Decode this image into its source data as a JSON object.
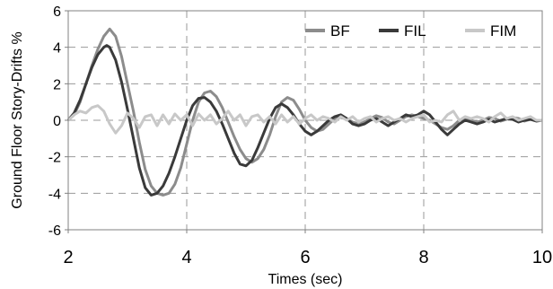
{
  "chart_data": {
    "type": "line",
    "title": "",
    "xlabel": "Times (sec)",
    "ylabel": "Ground Floor Story-Drifts %",
    "xlim": [
      2,
      10
    ],
    "ylim": [
      -6,
      6
    ],
    "x_ticks": [
      "2",
      "4",
      "6",
      "8",
      "10"
    ],
    "y_ticks": [
      "6",
      "4",
      "2",
      "0",
      "-2",
      "-4",
      "-6"
    ],
    "grid": "dashed",
    "legend_position": "top-right",
    "series": [
      {
        "name": "BF",
        "color": "#8c8c8c",
        "points": [
          [
            2.0,
            0.0
          ],
          [
            2.1,
            0.3
          ],
          [
            2.2,
            1.0
          ],
          [
            2.3,
            2.0
          ],
          [
            2.4,
            3.0
          ],
          [
            2.5,
            3.9
          ],
          [
            2.6,
            4.6
          ],
          [
            2.7,
            5.0
          ],
          [
            2.8,
            4.6
          ],
          [
            2.9,
            3.5
          ],
          [
            3.0,
            2.0
          ],
          [
            3.1,
            0.5
          ],
          [
            3.2,
            -1.2
          ],
          [
            3.3,
            -2.7
          ],
          [
            3.4,
            -3.6
          ],
          [
            3.5,
            -4.0
          ],
          [
            3.6,
            -4.1
          ],
          [
            3.7,
            -4.0
          ],
          [
            3.8,
            -3.5
          ],
          [
            3.9,
            -2.6
          ],
          [
            4.0,
            -1.3
          ],
          [
            4.1,
            0.0
          ],
          [
            4.2,
            1.0
          ],
          [
            4.3,
            1.5
          ],
          [
            4.4,
            1.6
          ],
          [
            4.5,
            1.3
          ],
          [
            4.6,
            0.7
          ],
          [
            4.7,
            -0.1
          ],
          [
            4.8,
            -0.9
          ],
          [
            4.9,
            -1.6
          ],
          [
            5.0,
            -2.1
          ],
          [
            5.1,
            -2.3
          ],
          [
            5.2,
            -2.1
          ],
          [
            5.3,
            -1.6
          ],
          [
            5.4,
            -0.8
          ],
          [
            5.5,
            0.2
          ],
          [
            5.6,
            1.0
          ],
          [
            5.7,
            1.25
          ],
          [
            5.8,
            1.1
          ],
          [
            5.9,
            0.6
          ],
          [
            6.0,
            0.0
          ],
          [
            6.1,
            -0.4
          ],
          [
            6.2,
            -0.6
          ],
          [
            6.3,
            -0.5
          ],
          [
            6.4,
            -0.2
          ],
          [
            6.5,
            0.1
          ],
          [
            6.6,
            0.15
          ],
          [
            6.7,
            0.05
          ],
          [
            6.8,
            -0.1
          ],
          [
            6.9,
            -0.2
          ],
          [
            7.0,
            -0.1
          ],
          [
            7.1,
            0.1
          ],
          [
            7.2,
            0.25
          ],
          [
            7.3,
            0.15
          ],
          [
            7.4,
            -0.1
          ],
          [
            7.5,
            -0.2
          ],
          [
            7.6,
            0.0
          ],
          [
            7.7,
            0.2
          ],
          [
            7.8,
            0.3
          ],
          [
            7.9,
            0.2
          ],
          [
            8.0,
            0.1
          ],
          [
            8.1,
            0.0
          ],
          [
            8.2,
            -0.2
          ],
          [
            8.3,
            -0.4
          ],
          [
            8.4,
            -0.5
          ],
          [
            8.5,
            -0.3
          ],
          [
            8.6,
            0.0
          ],
          [
            8.7,
            0.1
          ],
          [
            8.8,
            0.0
          ],
          [
            8.9,
            -0.1
          ],
          [
            9.0,
            0.0
          ],
          [
            9.1,
            0.15
          ],
          [
            9.2,
            0.1
          ],
          [
            9.3,
            -0.05
          ],
          [
            9.4,
            0.05
          ],
          [
            9.5,
            0.15
          ],
          [
            9.6,
            0.1
          ],
          [
            9.7,
            -0.05
          ],
          [
            9.8,
            0.05
          ],
          [
            9.9,
            0.0
          ],
          [
            10.0,
            0.0
          ]
        ]
      },
      {
        "name": "FIL",
        "color": "#3a3a3a",
        "points": [
          [
            2.0,
            0.0
          ],
          [
            2.1,
            0.4
          ],
          [
            2.2,
            1.1
          ],
          [
            2.3,
            2.0
          ],
          [
            2.4,
            2.9
          ],
          [
            2.5,
            3.6
          ],
          [
            2.6,
            4.0
          ],
          [
            2.65,
            4.1
          ],
          [
            2.7,
            4.0
          ],
          [
            2.8,
            3.3
          ],
          [
            2.9,
            2.1
          ],
          [
            3.0,
            0.6
          ],
          [
            3.1,
            -1.0
          ],
          [
            3.2,
            -2.6
          ],
          [
            3.3,
            -3.7
          ],
          [
            3.4,
            -4.1
          ],
          [
            3.5,
            -4.0
          ],
          [
            3.6,
            -3.6
          ],
          [
            3.7,
            -2.9
          ],
          [
            3.8,
            -2.0
          ],
          [
            3.9,
            -1.0
          ],
          [
            4.0,
            0.0
          ],
          [
            4.1,
            0.8
          ],
          [
            4.2,
            1.2
          ],
          [
            4.3,
            1.25
          ],
          [
            4.4,
            1.0
          ],
          [
            4.5,
            0.5
          ],
          [
            4.6,
            -0.2
          ],
          [
            4.7,
            -1.0
          ],
          [
            4.8,
            -1.8
          ],
          [
            4.9,
            -2.4
          ],
          [
            5.0,
            -2.5
          ],
          [
            5.1,
            -2.2
          ],
          [
            5.2,
            -1.5
          ],
          [
            5.3,
            -0.7
          ],
          [
            5.4,
            0.1
          ],
          [
            5.5,
            0.7
          ],
          [
            5.6,
            0.9
          ],
          [
            5.7,
            0.7
          ],
          [
            5.8,
            0.3
          ],
          [
            5.9,
            -0.2
          ],
          [
            6.0,
            -0.6
          ],
          [
            6.1,
            -0.8
          ],
          [
            6.2,
            -0.6
          ],
          [
            6.3,
            -0.3
          ],
          [
            6.4,
            0.0
          ],
          [
            6.5,
            0.2
          ],
          [
            6.6,
            0.3
          ],
          [
            6.7,
            0.1
          ],
          [
            6.8,
            -0.2
          ],
          [
            6.9,
            -0.3
          ],
          [
            7.0,
            -0.2
          ],
          [
            7.1,
            0.0
          ],
          [
            7.2,
            0.1
          ],
          [
            7.3,
            -0.1
          ],
          [
            7.4,
            -0.3
          ],
          [
            7.5,
            -0.1
          ],
          [
            7.6,
            0.1
          ],
          [
            7.7,
            0.3
          ],
          [
            7.8,
            0.2
          ],
          [
            7.9,
            0.3
          ],
          [
            8.0,
            0.5
          ],
          [
            8.1,
            0.3
          ],
          [
            8.2,
            -0.1
          ],
          [
            8.3,
            -0.5
          ],
          [
            8.4,
            -0.8
          ],
          [
            8.5,
            -0.5
          ],
          [
            8.6,
            -0.2
          ],
          [
            8.7,
            0.0
          ],
          [
            8.8,
            -0.1
          ],
          [
            8.9,
            -0.2
          ],
          [
            9.0,
            -0.1
          ],
          [
            9.1,
            0.05
          ],
          [
            9.2,
            -0.1
          ],
          [
            9.3,
            0.0
          ],
          [
            9.4,
            0.1
          ],
          [
            9.5,
            0.05
          ],
          [
            9.6,
            -0.1
          ],
          [
            9.7,
            0.0
          ],
          [
            9.8,
            0.05
          ],
          [
            9.9,
            -0.05
          ],
          [
            10.0,
            0.0
          ]
        ]
      },
      {
        "name": "FIM",
        "color": "#c8c8c8",
        "points": [
          [
            2.0,
            0.0
          ],
          [
            2.1,
            0.3
          ],
          [
            2.2,
            0.5
          ],
          [
            2.3,
            0.4
          ],
          [
            2.4,
            0.7
          ],
          [
            2.5,
            0.8
          ],
          [
            2.6,
            0.5
          ],
          [
            2.7,
            -0.2
          ],
          [
            2.8,
            -0.7
          ],
          [
            2.9,
            -0.3
          ],
          [
            3.0,
            0.4
          ],
          [
            3.1,
            0.1
          ],
          [
            3.2,
            -0.4
          ],
          [
            3.3,
            0.2
          ],
          [
            3.4,
            0.3
          ],
          [
            3.5,
            -0.3
          ],
          [
            3.6,
            0.3
          ],
          [
            3.7,
            -0.2
          ],
          [
            3.8,
            0.35
          ],
          [
            3.9,
            0.0
          ],
          [
            4.0,
            0.3
          ],
          [
            4.1,
            -0.3
          ],
          [
            4.2,
            0.35
          ],
          [
            4.3,
            0.0
          ],
          [
            4.4,
            0.3
          ],
          [
            4.5,
            -0.2
          ],
          [
            4.6,
            0.1
          ],
          [
            4.7,
            0.5
          ],
          [
            4.8,
            0.0
          ],
          [
            4.9,
            0.3
          ],
          [
            5.0,
            -0.3
          ],
          [
            5.1,
            0.2
          ],
          [
            5.2,
            0.3
          ],
          [
            5.3,
            -0.1
          ],
          [
            5.4,
            0.2
          ],
          [
            5.5,
            -0.2
          ],
          [
            5.6,
            0.3
          ],
          [
            5.7,
            -0.1
          ],
          [
            5.8,
            0.2
          ],
          [
            5.9,
            -0.2
          ],
          [
            6.0,
            0.1
          ],
          [
            6.1,
            0.3
          ],
          [
            6.2,
            0.0
          ],
          [
            6.3,
            0.2
          ],
          [
            6.4,
            0.1
          ],
          [
            6.5,
            -0.1
          ],
          [
            6.6,
            0.2
          ],
          [
            6.7,
            0.0
          ],
          [
            6.8,
            0.2
          ],
          [
            6.9,
            -0.1
          ],
          [
            7.0,
            0.1
          ],
          [
            7.1,
            0.2
          ],
          [
            7.2,
            -0.1
          ],
          [
            7.3,
            0.1
          ],
          [
            7.4,
            0.2
          ],
          [
            7.5,
            0.0
          ],
          [
            7.6,
            0.1
          ],
          [
            7.7,
            -0.1
          ],
          [
            7.8,
            0.1
          ],
          [
            7.9,
            0.2
          ],
          [
            8.0,
            0.3
          ],
          [
            8.1,
            -0.1
          ],
          [
            8.2,
            0.0
          ],
          [
            8.3,
            -0.1
          ],
          [
            8.4,
            0.3
          ],
          [
            8.5,
            0.5
          ],
          [
            8.6,
            0.0
          ],
          [
            8.7,
            0.2
          ],
          [
            8.8,
            0.1
          ],
          [
            8.9,
            0.2
          ],
          [
            9.0,
            0.1
          ],
          [
            9.1,
            -0.1
          ],
          [
            9.2,
            0.2
          ],
          [
            9.3,
            0.4
          ],
          [
            9.4,
            0.1
          ],
          [
            9.5,
            0.2
          ],
          [
            9.6,
            0.0
          ],
          [
            9.7,
            0.1
          ],
          [
            9.8,
            0.2
          ],
          [
            9.9,
            0.0
          ],
          [
            10.0,
            0.0
          ]
        ]
      }
    ]
  }
}
